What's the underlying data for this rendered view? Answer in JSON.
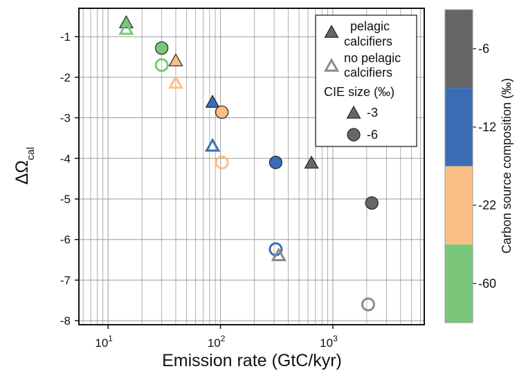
{
  "chart_data": {
    "type": "scatter",
    "x_scale": "log",
    "xlim": [
      5.5,
      6500
    ],
    "ylim": [
      -8.1,
      -0.3
    ],
    "grid": true,
    "xlabel": "Emission rate (GtC/kyr)",
    "ylabel_main": "ΔΩ",
    "ylabel_sub": "cal",
    "x_ticks": [
      {
        "value": 10,
        "base": "10",
        "exp": "1"
      },
      {
        "value": 100,
        "base": "10",
        "exp": "2"
      },
      {
        "value": 1000,
        "base": "10",
        "exp": "3"
      }
    ],
    "y_ticks": [
      -1,
      -2,
      -3,
      -4,
      -5,
      -6,
      -7,
      -8
    ],
    "y_tick_labels": [
      "-1",
      "-2",
      "-3",
      "-4",
      "-5",
      "-6",
      "-7",
      "-8"
    ],
    "colorbar": {
      "title": "Carbon source composition (‰)",
      "levels": [
        {
          "label": "-6",
          "color": "#666666"
        },
        {
          "label": "-12",
          "color": "#3a6db5"
        },
        {
          "label": "-22",
          "color": "#fbbf85"
        },
        {
          "label": "-60",
          "color": "#7ac77a"
        }
      ]
    },
    "legend": {
      "position": "top-right",
      "filled_label_1": "pelagic",
      "filled_label_2": "calcifiers",
      "open_label_1": "no pelagic",
      "open_label_2": "calcifiers",
      "cie_title": "CIE size (‰)",
      "cie_triangle_label": "-3",
      "cie_circle_label": "-6"
    },
    "points": [
      {
        "x": 14.5,
        "y": -0.66,
        "marker": "triangle",
        "filled": true,
        "source": "-60"
      },
      {
        "x": 14.5,
        "y": -0.82,
        "marker": "triangle",
        "filled": false,
        "source": "-60"
      },
      {
        "x": 30,
        "y": -1.28,
        "marker": "circle",
        "filled": true,
        "source": "-60"
      },
      {
        "x": 30,
        "y": -1.7,
        "marker": "circle",
        "filled": false,
        "source": "-60"
      },
      {
        "x": 40,
        "y": -1.6,
        "marker": "triangle",
        "filled": true,
        "source": "-22"
      },
      {
        "x": 40,
        "y": -2.15,
        "marker": "triangle",
        "filled": false,
        "source": "-22"
      },
      {
        "x": 85,
        "y": -2.62,
        "marker": "triangle",
        "filled": true,
        "source": "-12"
      },
      {
        "x": 85,
        "y": -3.7,
        "marker": "triangle",
        "filled": false,
        "source": "-12"
      },
      {
        "x": 103,
        "y": -2.86,
        "marker": "circle",
        "filled": true,
        "source": "-22"
      },
      {
        "x": 103,
        "y": -4.1,
        "marker": "circle",
        "filled": false,
        "source": "-22"
      },
      {
        "x": 310,
        "y": -4.1,
        "marker": "circle",
        "filled": true,
        "source": "-12"
      },
      {
        "x": 310,
        "y": -6.24,
        "marker": "circle",
        "filled": false,
        "source": "-12"
      },
      {
        "x": 645,
        "y": -4.12,
        "marker": "triangle",
        "filled": true,
        "source": "-6"
      },
      {
        "x": 330,
        "y": -6.4,
        "marker": "triangle",
        "filled": false,
        "source": "-6"
      },
      {
        "x": 2220,
        "y": -5.1,
        "marker": "circle",
        "filled": true,
        "source": "-6"
      },
      {
        "x": 2060,
        "y": -7.6,
        "marker": "circle",
        "filled": false,
        "source": "-6"
      }
    ]
  }
}
